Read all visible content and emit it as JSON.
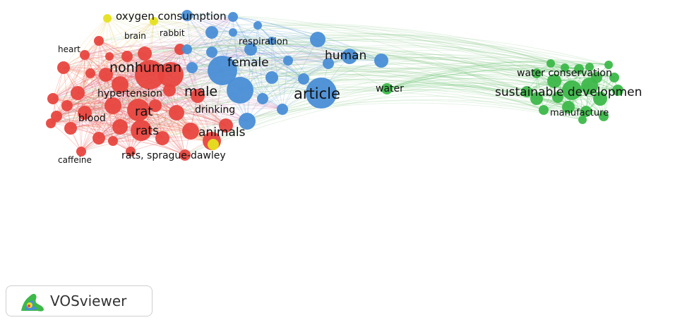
{
  "colors": {
    "red_cluster": "#e8463f",
    "blue_cluster": "#4a8ed6",
    "green_cluster": "#3db84a",
    "yellow_cluster": "#e6e020"
  },
  "nodes": {
    "oxygen_consumption": "oxygen consumption",
    "brain": "brain",
    "rabbit": "rabbit",
    "respiration": "respiration",
    "heart": "heart",
    "nonhuman": "nonhuman",
    "female": "female",
    "human": "human",
    "hypertension": "hypertension",
    "male": "male",
    "article": "article",
    "water": "water",
    "rat": "rat",
    "drinking": "drinking",
    "blood": "blood",
    "rats": "rats",
    "animals": "animals",
    "rats_sprague_dawley": "rats, sprague-dawley",
    "caffeine": "caffeine",
    "water_conservation": "water conservation",
    "sustainable_development": "sustainable developmen",
    "manufacture": "manufacture"
  },
  "badge": {
    "label": "VOSviewer",
    "icon": "vosviewer-logo-icon"
  }
}
